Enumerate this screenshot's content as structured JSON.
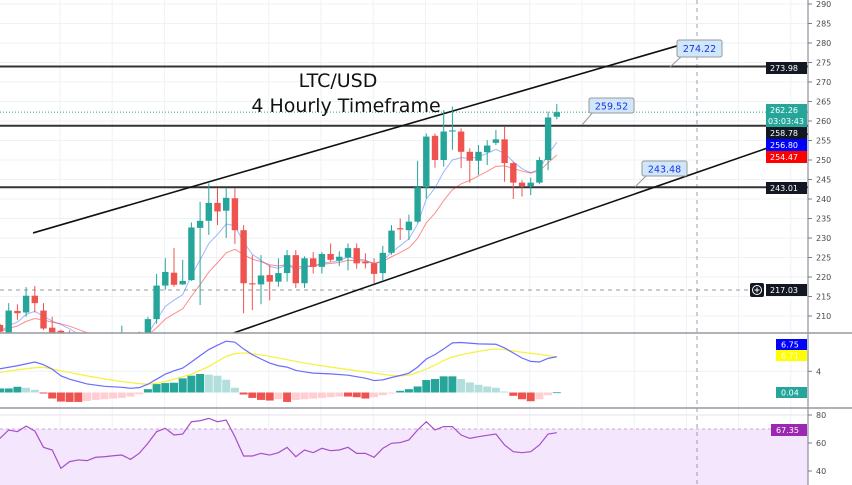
{
  "chart_title": {
    "line1": "LTC/USD",
    "line2": "4 Hourly Timeframe"
  },
  "colors": {
    "up": "#26a69a",
    "down": "#ef5350",
    "ma_fast": "#2962ff",
    "ma_slow": "#ff0000",
    "macd": "#6b6bff",
    "signal": "#f5f23a",
    "rsi": "#a64fc6",
    "rsi_band": "#f3e6fd",
    "level": "#333333",
    "callout_bg": "#cfe6fb"
  },
  "chart_data": {
    "type": "candlestick",
    "timeframe": "4 Hourly",
    "ylim": [
      205.6,
      291
    ],
    "price_ticks": [
      290,
      285,
      280,
      275,
      270,
      265,
      260,
      255,
      250,
      245,
      240,
      235,
      230,
      225,
      220,
      215,
      210
    ],
    "candles_ohlc": [
      [
        207.7,
        208,
        205,
        206
      ],
      [
        205.8,
        213.3,
        205,
        211.4
      ],
      [
        211.3,
        213,
        209,
        210.7
      ],
      [
        210.9,
        217.4,
        209.8,
        215.2
      ],
      [
        215.2,
        217.7,
        210.9,
        213.3
      ],
      [
        211.4,
        213.3,
        206.4,
        206.8
      ],
      [
        207,
        209.8,
        205,
        205.6
      ],
      [
        206.2,
        206.5,
        205,
        205.6
      ],
      [
        205.6,
        206.3,
        203,
        204
      ],
      [
        204,
        204.8,
        201.5,
        202
      ],
      [
        202,
        203,
        200,
        201
      ],
      [
        201,
        202,
        199.5,
        200.5
      ],
      [
        200.5,
        202.5,
        200,
        201.8
      ],
      [
        201.8,
        203,
        201,
        202.5
      ],
      [
        202.5,
        207.5,
        202,
        204
      ],
      [
        204,
        205,
        202.5,
        203.5
      ],
      [
        203.5,
        206,
        203,
        205.7
      ],
      [
        205.7,
        209.8,
        204,
        209.2
      ],
      [
        209.2,
        220.8,
        208,
        217.8
      ],
      [
        217.8,
        224.8,
        216.7,
        221.3
      ],
      [
        221.1,
        227.4,
        217.5,
        218
      ],
      [
        218.1,
        224.4,
        218,
        219
      ],
      [
        219.2,
        234,
        219,
        232.7
      ],
      [
        232.6,
        239.3,
        212.8,
        234.4
      ],
      [
        234.4,
        244,
        230.8,
        239
      ],
      [
        239,
        242.7,
        233.3,
        236.8
      ],
      [
        237,
        242.7,
        230,
        240.3
      ],
      [
        240.2,
        242.7,
        228.5,
        232
      ],
      [
        232,
        233.3,
        210.7,
        218.4
      ],
      [
        218.4,
        225.6,
        211.5,
        218.1
      ],
      [
        218.1,
        225.6,
        213,
        220.4
      ],
      [
        220.5,
        223,
        214,
        218.8
      ],
      [
        218.8,
        224.8,
        217.5,
        221
      ],
      [
        221,
        226.9,
        218.8,
        225.6
      ],
      [
        225.6,
        226.9,
        217.2,
        218.4
      ],
      [
        218.4,
        225.3,
        217.2,
        224.8
      ],
      [
        224.8,
        226.4,
        220.9,
        222.6
      ],
      [
        222.6,
        226.4,
        220.9,
        225.9
      ],
      [
        225.9,
        228.6,
        223.9,
        224.4
      ],
      [
        224.2,
        226.6,
        222.8,
        225.2
      ],
      [
        225,
        228.6,
        221.7,
        227.4
      ],
      [
        227.4,
        228.6,
        222.1,
        223.5
      ],
      [
        223.9,
        226.1,
        222.2,
        223.5
      ],
      [
        223.5,
        224.8,
        218.4,
        220.8
      ],
      [
        221,
        228,
        219,
        226.2
      ],
      [
        226.2,
        233.3,
        225.7,
        231.9
      ],
      [
        232.5,
        235,
        229.5,
        232.2
      ],
      [
        232,
        236,
        229.5,
        234.2
      ],
      [
        234.2,
        249.8,
        233.8,
        243
      ],
      [
        243,
        256.8,
        240.2,
        256
      ],
      [
        256.2,
        256.8,
        248,
        250
      ],
      [
        250,
        262.8,
        248.3,
        257.3
      ],
      [
        257.3,
        263.7,
        252.6,
        257.6
      ],
      [
        257.3,
        258.1,
        247.9,
        252.1
      ],
      [
        252.1,
        253,
        244.2,
        249.8
      ],
      [
        249.8,
        253.8,
        246.2,
        252.1
      ],
      [
        252,
        255.1,
        248.7,
        253.7
      ],
      [
        254.4,
        257.7,
        253.8,
        255.3
      ],
      [
        255.3,
        258.5,
        244.4,
        249.2
      ],
      [
        249.2,
        249.6,
        240,
        244.2
      ],
      [
        244.2,
        244.8,
        240.6,
        243.3
      ],
      [
        243.3,
        245.5,
        241,
        244.2
      ],
      [
        244.2,
        250.8,
        243.8,
        250
      ],
      [
        250,
        262.4,
        247.4,
        260.9
      ],
      [
        261.1,
        264.4,
        260.4,
        262.26
      ]
    ],
    "horizontal_levels": [
      273.98,
      258.78,
      243.01
    ],
    "trendlines": [
      {
        "from": [
          3.8,
          231.3
        ],
        "to": [
          78.2,
          279.5
        ]
      },
      {
        "from": [
          26.8,
          205.6
        ],
        "to": [
          92.9,
          256.7
        ]
      }
    ],
    "callouts": [
      {
        "text": "274.22",
        "anchor": [
          77,
          273.98
        ]
      },
      {
        "text": "259.52",
        "anchor": [
          66.9,
          259
        ]
      },
      {
        "text": "243.48",
        "anchor": [
          73,
          243
        ]
      }
    ],
    "last_price": "262.26",
    "countdown": "03:03:43",
    "level_labels": [
      "273.98",
      "258.78",
      "243.01"
    ],
    "ma_fast_value": "256.80",
    "ma_slow_value": "254.47",
    "crosshair_price": "217.03",
    "macd": {
      "ticks": [
        4
      ],
      "macd_value": "6.75",
      "signal_value": "6.71",
      "histogram_value": "0.04",
      "macd_line": [
        [
          0,
          4.48
        ],
        [
          2,
          5.05
        ],
        [
          4,
          5.75
        ],
        [
          5,
          5.24
        ],
        [
          6,
          4.41
        ],
        [
          7,
          3.14
        ],
        [
          8,
          2.51
        ],
        [
          10,
          1.62
        ],
        [
          12,
          1.17
        ],
        [
          14,
          0.98
        ],
        [
          15,
          0.79
        ],
        [
          16,
          0.92
        ],
        [
          17,
          1.56
        ],
        [
          18,
          2.51
        ],
        [
          19,
          3.46
        ],
        [
          20,
          4.1
        ],
        [
          21,
          4.6
        ],
        [
          22,
          5.75
        ],
        [
          23,
          6.95
        ],
        [
          24,
          8.1
        ],
        [
          25,
          8.92
        ],
        [
          26,
          9.68
        ],
        [
          27,
          9.49
        ],
        [
          28,
          8.22
        ],
        [
          29,
          7.14
        ],
        [
          30,
          6.32
        ],
        [
          31,
          5.56
        ],
        [
          32,
          5.05
        ],
        [
          33,
          4.79
        ],
        [
          34,
          4.16
        ],
        [
          35,
          3.9
        ],
        [
          36,
          3.65
        ],
        [
          38,
          3.52
        ],
        [
          40,
          3.27
        ],
        [
          42,
          2.7
        ],
        [
          43,
          2.25
        ],
        [
          44,
          2.38
        ],
        [
          45,
          2.83
        ],
        [
          46,
          3.21
        ],
        [
          47,
          3.65
        ],
        [
          48,
          4.79
        ],
        [
          49,
          6.32
        ],
        [
          50,
          7.14
        ],
        [
          51,
          8.22
        ],
        [
          52,
          9.37
        ],
        [
          53,
          9.43
        ],
        [
          55,
          9.17
        ],
        [
          57,
          9.11
        ],
        [
          58,
          8.41
        ],
        [
          59,
          7.46
        ],
        [
          60,
          6.51
        ],
        [
          61,
          5.87
        ],
        [
          62,
          5.75
        ],
        [
          63,
          6.44
        ],
        [
          64,
          6.75
        ]
      ],
      "signal_line": [
        [
          0,
          3.78
        ],
        [
          2,
          4.29
        ],
        [
          4,
          4.67
        ],
        [
          5,
          4.79
        ],
        [
          6,
          4.41
        ],
        [
          8,
          3.78
        ],
        [
          10,
          3.14
        ],
        [
          12,
          2.57
        ],
        [
          14,
          2.06
        ],
        [
          16,
          1.68
        ],
        [
          17,
          1.56
        ],
        [
          18,
          1.75
        ],
        [
          19,
          2.06
        ],
        [
          20,
          2.51
        ],
        [
          22,
          3.46
        ],
        [
          24,
          4.92
        ],
        [
          26,
          6.83
        ],
        [
          27,
          7.33
        ],
        [
          28,
          7.46
        ],
        [
          29,
          7.33
        ],
        [
          31,
          6.83
        ],
        [
          33,
          6.19
        ],
        [
          35,
          5.56
        ],
        [
          38,
          4.79
        ],
        [
          41,
          4.1
        ],
        [
          43,
          3.65
        ],
        [
          45,
          3.21
        ],
        [
          46,
          3.14
        ],
        [
          47,
          3.27
        ],
        [
          48,
          3.78
        ],
        [
          49,
          4.41
        ],
        [
          50,
          5.17
        ],
        [
          51,
          6.06
        ],
        [
          52,
          6.7
        ],
        [
          54,
          7.46
        ],
        [
          56,
          8.03
        ],
        [
          57,
          8.22
        ],
        [
          58,
          8.1
        ],
        [
          60,
          7.59
        ],
        [
          62,
          7.21
        ],
        [
          64,
          6.71
        ]
      ],
      "histogram": [
        0.76,
        0.76,
        1.08,
        0.89,
        0.51,
        -0.19,
        -1.14,
        -1.71,
        -1.78,
        -1.78,
        -1.59,
        -1.4,
        -1.27,
        -1.14,
        -1.02,
        -0.76,
        -0.32,
        0.63,
        1.59,
        1.78,
        1.84,
        2.67,
        3.17,
        3.49,
        3.37,
        3.17,
        2.41,
        0.89,
        -0.38,
        -1.02,
        -1.4,
        -1.52,
        -1.27,
        -1.78,
        -1.4,
        -1.27,
        -1.14,
        -1.02,
        -0.89,
        -0.76,
        -0.76,
        -0.89,
        -1.14,
        -0.89,
        -0.51,
        -0.19,
        0.32,
        0.63,
        1.14,
        2.35,
        2.54,
        3.05,
        3.05,
        2.54,
        1.9,
        1.46,
        1.14,
        0.89,
        0.19,
        -0.63,
        -1.27,
        -1.65,
        -1.27,
        -0.51,
        0.04
      ]
    },
    "rsi": {
      "ticks": [
        80,
        60,
        40
      ],
      "band": [
        30,
        70
      ],
      "value_label": "67.35",
      "values": [
        63.3,
        69.3,
        68.1,
        72.1,
        68.6,
        56.9,
        55,
        41.9,
        46.7,
        47.9,
        47.4,
        49.8,
        50.2,
        50.9,
        51.4,
        48.3,
        52.6,
        59.8,
        68.1,
        70.5,
        65.7,
        66.4,
        75.2,
        75.9,
        77.6,
        75.2,
        76.4,
        64.5,
        50.7,
        50.7,
        52.6,
        51.4,
        53.1,
        56.9,
        50.2,
        55,
        53.1,
        56.2,
        54.5,
        55,
        56.9,
        52.6,
        52.6,
        49.8,
        56.2,
        59.8,
        60.3,
        62.2,
        69.3,
        75.2,
        69.3,
        71.7,
        71.7,
        65.7,
        63.3,
        64.5,
        65.5,
        66.4,
        58.6,
        53.8,
        53.1,
        53.8,
        58.6,
        66.4,
        67.35
      ]
    }
  }
}
